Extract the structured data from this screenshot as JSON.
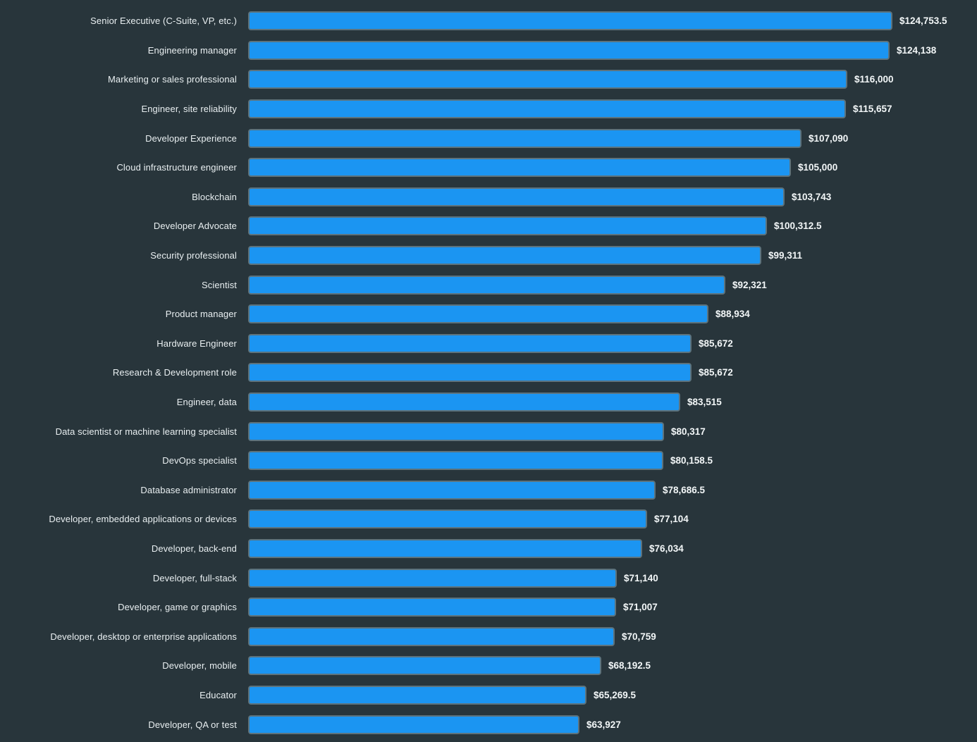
{
  "chart_data": {
    "type": "bar",
    "orientation": "horizontal",
    "title": "",
    "xlabel": "",
    "ylabel": "",
    "grid": false,
    "legend": false,
    "xlim": [
      0,
      130000
    ],
    "background_color": "#28353b",
    "bar_color": "#1b95f2",
    "bar_border_color": "#5d737d",
    "text_color": "#e9eff1",
    "value_text_color": "#f3f7f8",
    "categories": [
      "Senior Executive (C-Suite, VP, etc.)",
      "Engineering manager",
      "Marketing or sales professional",
      "Engineer, site reliability",
      "Developer Experience",
      "Cloud infrastructure engineer",
      "Blockchain",
      "Developer Advocate",
      "Security professional",
      "Scientist",
      "Product manager",
      "Hardware Engineer",
      "Research & Development role",
      "Engineer, data",
      "Data scientist or machine learning specialist",
      "DevOps specialist",
      "Database administrator",
      "Developer, embedded applications or devices",
      "Developer, back-end",
      "Developer, full-stack",
      "Developer, game or graphics",
      "Developer, desktop or enterprise applications",
      "Developer, mobile",
      "Educator",
      "Developer, QA or test"
    ],
    "values": [
      124753.5,
      124138,
      116000,
      115657,
      107090,
      105000,
      103743,
      100312.5,
      99311,
      92321,
      88934,
      85672,
      85672,
      83515,
      80317,
      80158.5,
      78686.5,
      77104,
      76034,
      71140,
      71007,
      70759,
      68192.5,
      65269.5,
      63927
    ],
    "value_labels": [
      "$124,753.5",
      "$124,138",
      "$116,000",
      "$115,657",
      "$107,090",
      "$105,000",
      "$103,743",
      "$100,312.5",
      "$99,311",
      "$92,321",
      "$88,934",
      "$85,672",
      "$85,672",
      "$83,515",
      "$80,317",
      "$80,158.5",
      "$78,686.5",
      "$77,104",
      "$76,034",
      "$71,140",
      "$71,007",
      "$70,759",
      "$68,192.5",
      "$65,269.5",
      "$63,927"
    ]
  }
}
